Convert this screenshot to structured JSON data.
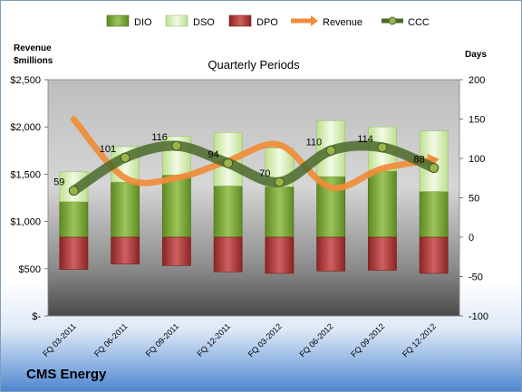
{
  "company": "CMS Energy",
  "chart_data": {
    "type": "bar",
    "title": "Quarterly Periods",
    "y_left_label": [
      "Revenue",
      "$millions"
    ],
    "y_right_label": "Days",
    "categories": [
      "FQ 03-2011",
      "FQ 06-2011",
      "FQ 09-2011",
      "FQ 12-2011",
      "FQ 03-2012",
      "FQ 06-2012",
      "FQ 09-2012",
      "FQ 12-2012"
    ],
    "left_axis": {
      "min": 0,
      "max": 2500,
      "ticks": [
        0,
        500,
        1000,
        1500,
        2000,
        2500
      ],
      "tick_labels": [
        "$-",
        "$500",
        "$1,000",
        "$1,500",
        "$2,000",
        "$2,500"
      ]
    },
    "right_axis": {
      "min": -100,
      "max": 200,
      "ticks": [
        -100,
        -50,
        0,
        50,
        100,
        150,
        200
      ],
      "tick_labels": [
        "-100",
        "-50",
        "0",
        "50",
        "100",
        "150",
        "200"
      ]
    },
    "legend": [
      "DIO",
      "DSO",
      "DPO",
      "Revenue",
      "CCC"
    ],
    "legend_position": "top",
    "series": [
      {
        "name": "DIO",
        "axis": "right",
        "kind": "stacked-bar",
        "color": "#77a03a",
        "values": [
          45,
          70,
          79,
          65,
          64,
          77,
          84,
          58
        ]
      },
      {
        "name": "DSO",
        "axis": "right",
        "kind": "stacked-bar",
        "color": "#d9f0b8",
        "values": [
          38,
          45,
          49,
          68,
          49,
          71,
          56,
          77
        ]
      },
      {
        "name": "DPO",
        "axis": "right",
        "kind": "negative-bar",
        "color": "#a33838",
        "values": [
          -41,
          -34,
          -36,
          -44,
          -46,
          -43,
          -42,
          -46
        ]
      },
      {
        "name": "Revenue",
        "axis": "left",
        "kind": "line",
        "color": "#f08c3a",
        "values": [
          2080,
          1460,
          1460,
          1640,
          1810,
          1360,
          1560,
          1650
        ]
      },
      {
        "name": "CCC",
        "axis": "right",
        "kind": "line",
        "color": "#4a6a2a",
        "values": [
          59,
          101,
          116,
          94,
          70,
          110,
          114,
          88
        ],
        "labels": [
          "59",
          "101",
          "116",
          "94",
          "70",
          "110",
          "114",
          "88"
        ]
      }
    ],
    "grid": false
  }
}
